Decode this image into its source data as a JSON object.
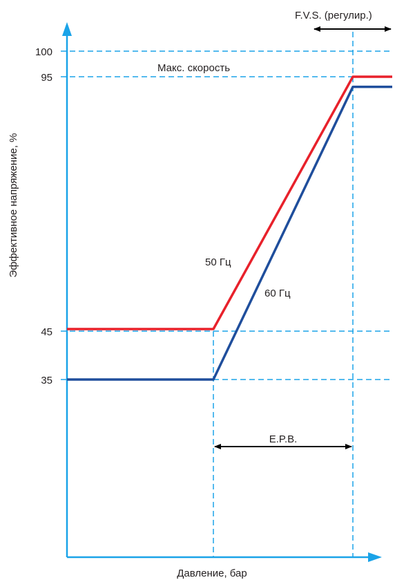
{
  "chart_data": {
    "type": "line",
    "xlabel": "Давление, бар",
    "ylabel": "Эффективное напряжение, %",
    "yticks": [
      100,
      95,
      45,
      35
    ],
    "series": [
      {
        "name": "50 Гц",
        "color": "#e8212b",
        "points": [
          [
            0,
            45
          ],
          [
            1,
            45
          ],
          [
            2,
            95
          ],
          [
            2.3,
            95
          ]
        ]
      },
      {
        "name": "60 Гц",
        "color": "#1f4e9c",
        "points": [
          [
            0,
            35
          ],
          [
            1,
            35
          ],
          [
            2,
            93
          ],
          [
            2.3,
            93
          ]
        ]
      }
    ],
    "annotations": {
      "max_speed": "Макс. скорость",
      "fvs": "F.V.S. (регулир.)",
      "epb": "E.P.B."
    },
    "axis_color": "#1aa3e8",
    "grid": "dashed at 35, 45, 95, 100"
  }
}
